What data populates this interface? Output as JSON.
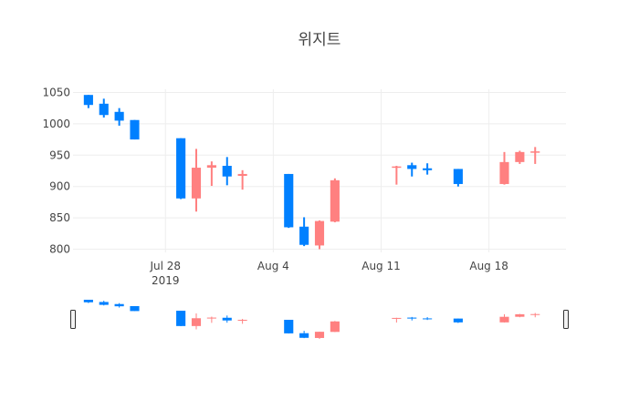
{
  "chart_data": {
    "type": "candlestick",
    "title": "위지트",
    "y_ticks": [
      800,
      850,
      900,
      950,
      1000,
      1050
    ],
    "x_ticks": [
      {
        "date": "2019-07-28",
        "label": "Jul 28",
        "sublabel": "2019"
      },
      {
        "date": "2019-08-04",
        "label": "Aug 4",
        "sublabel": ""
      },
      {
        "date": "2019-08-11",
        "label": "Aug 11",
        "sublabel": ""
      },
      {
        "date": "2019-08-18",
        "label": "Aug 18",
        "sublabel": ""
      }
    ],
    "x_range": [
      "2019-07-22",
      "2019-08-23"
    ],
    "y_range": [
      795,
      1055
    ],
    "increasing_color": "#ff8080",
    "decreasing_color": "#0080ff",
    "range_slider": true,
    "candles": [
      {
        "date": "2019-07-23",
        "open": 1046,
        "high": 1046,
        "low": 1025,
        "close": 1030
      },
      {
        "date": "2019-07-24",
        "open": 1032,
        "high": 1040,
        "low": 1010,
        "close": 1014
      },
      {
        "date": "2019-07-25",
        "open": 1019,
        "high": 1025,
        "low": 997,
        "close": 1005
      },
      {
        "date": "2019-07-26",
        "open": 1006,
        "high": 1006,
        "low": 975,
        "close": 975
      },
      {
        "date": "2019-07-29",
        "open": 977,
        "high": 977,
        "low": 880,
        "close": 881
      },
      {
        "date": "2019-07-30",
        "open": 881,
        "high": 960,
        "low": 860,
        "close": 930
      },
      {
        "date": "2019-07-31",
        "open": 930,
        "high": 940,
        "low": 901,
        "close": 934
      },
      {
        "date": "2019-08-01",
        "open": 933,
        "high": 947,
        "low": 902,
        "close": 916
      },
      {
        "date": "2019-08-02",
        "open": 917,
        "high": 926,
        "low": 895,
        "close": 920
      },
      {
        "date": "2019-08-05",
        "open": 920,
        "high": 920,
        "low": 834,
        "close": 835
      },
      {
        "date": "2019-08-06",
        "open": 836,
        "high": 851,
        "low": 805,
        "close": 807
      },
      {
        "date": "2019-08-07",
        "open": 806,
        "high": 846,
        "low": 800,
        "close": 845
      },
      {
        "date": "2019-08-08",
        "open": 844,
        "high": 913,
        "low": 843,
        "close": 910
      },
      {
        "date": "2019-08-12",
        "open": 930,
        "high": 933,
        "low": 903,
        "close": 932
      },
      {
        "date": "2019-08-13",
        "open": 934,
        "high": 938,
        "low": 916,
        "close": 928
      },
      {
        "date": "2019-08-14",
        "open": 929,
        "high": 937,
        "low": 919,
        "close": 926
      },
      {
        "date": "2019-08-16",
        "open": 928,
        "high": 928,
        "low": 900,
        "close": 904
      },
      {
        "date": "2019-08-19",
        "open": 904,
        "high": 955,
        "low": 903,
        "close": 939
      },
      {
        "date": "2019-08-20",
        "open": 939,
        "high": 957,
        "low": 936,
        "close": 955
      },
      {
        "date": "2019-08-21",
        "open": 954,
        "high": 963,
        "low": 936,
        "close": 956
      }
    ]
  }
}
